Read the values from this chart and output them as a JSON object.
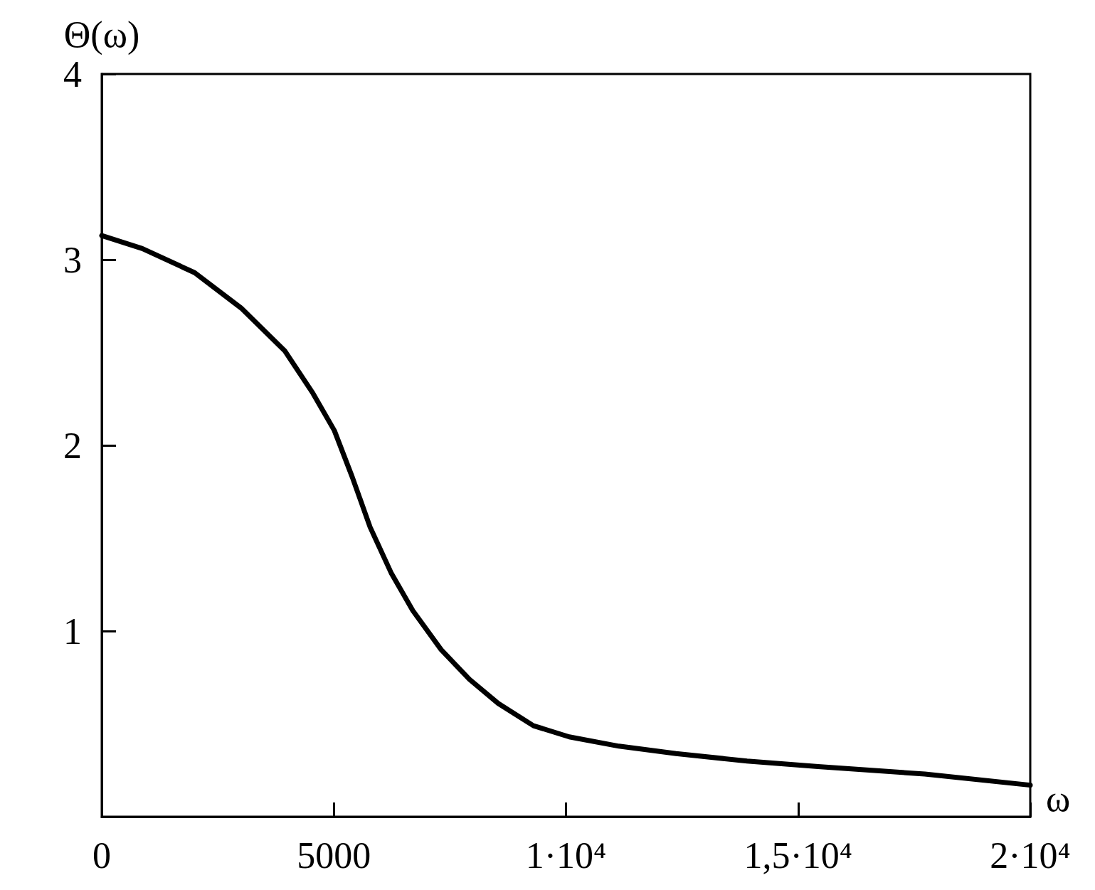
{
  "chart_data": {
    "type": "line",
    "xlabel": "ω",
    "ylabel": "Θ(ω)",
    "x": [
      0,
      873,
      2000,
      3000,
      3940,
      4550,
      5010,
      5395,
      5780,
      6240,
      6700,
      7310,
      7920,
      8540,
      9300,
      10070,
      11140,
      12370,
      13900,
      15430,
      17730,
      20000
    ],
    "series": [
      {
        "color": "#000000",
        "values": [
          3.13,
          3.06,
          2.93,
          2.74,
          2.51,
          2.28,
          2.08,
          1.83,
          1.56,
          1.31,
          1.11,
          0.9,
          0.74,
          0.61,
          0.49,
          0.43,
          0.38,
          0.34,
          0.3,
          0.27,
          0.23,
          0.17
        ]
      }
    ],
    "xlim": [
      0,
      20000
    ],
    "ylim": [
      0,
      4
    ],
    "xticks": [
      0,
      5000,
      {
        "value": 10000,
        "label": "1·10⁴"
      },
      {
        "value": 15000,
        "label": "1,5·10⁴"
      },
      {
        "value": 20000,
        "label": "2·10⁴"
      }
    ],
    "yticks": [
      1,
      2,
      3,
      4
    ],
    "grid": false,
    "marker": "none",
    "line_style": "solid"
  }
}
